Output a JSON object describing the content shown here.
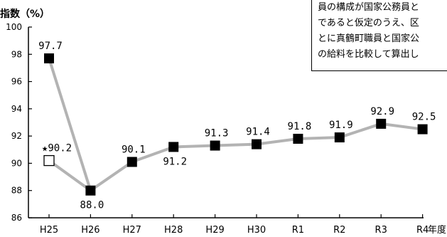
{
  "chart_data": {
    "type": "line",
    "ylabel": "指数（%）",
    "xlabel": "年度",
    "categories": [
      "H25",
      "H26",
      "H27",
      "H28",
      "H29",
      "H30",
      "R1",
      "R2",
      "R3",
      "R4"
    ],
    "series": [
      {
        "values": [
          97.7,
          88.0,
          90.1,
          91.2,
          91.3,
          91.4,
          91.8,
          91.9,
          92.9,
          92.5
        ]
      }
    ],
    "value_labels": [
      "97.7",
      "88.0",
      "90.1",
      "91.2",
      "91.3",
      "91.4",
      "91.8",
      "91.9",
      "92.9",
      "92.5"
    ],
    "special_point": {
      "category": "H25",
      "value": 90.2,
      "label": "★90.2"
    },
    "ylim": [
      86,
      100
    ],
    "yticks": [
      86,
      88,
      90,
      92,
      94,
      96,
      98,
      100
    ],
    "grid": false,
    "colors": {
      "line": "#b3b3b3",
      "marker": "#000000",
      "axis": "#000000"
    }
  },
  "note": {
    "lines": [
      "員の構成が国家公務員と",
      "であると仮定のうえ、区",
      "とに真鶴町職員と国家公",
      "の給料を比較して算出し"
    ]
  }
}
